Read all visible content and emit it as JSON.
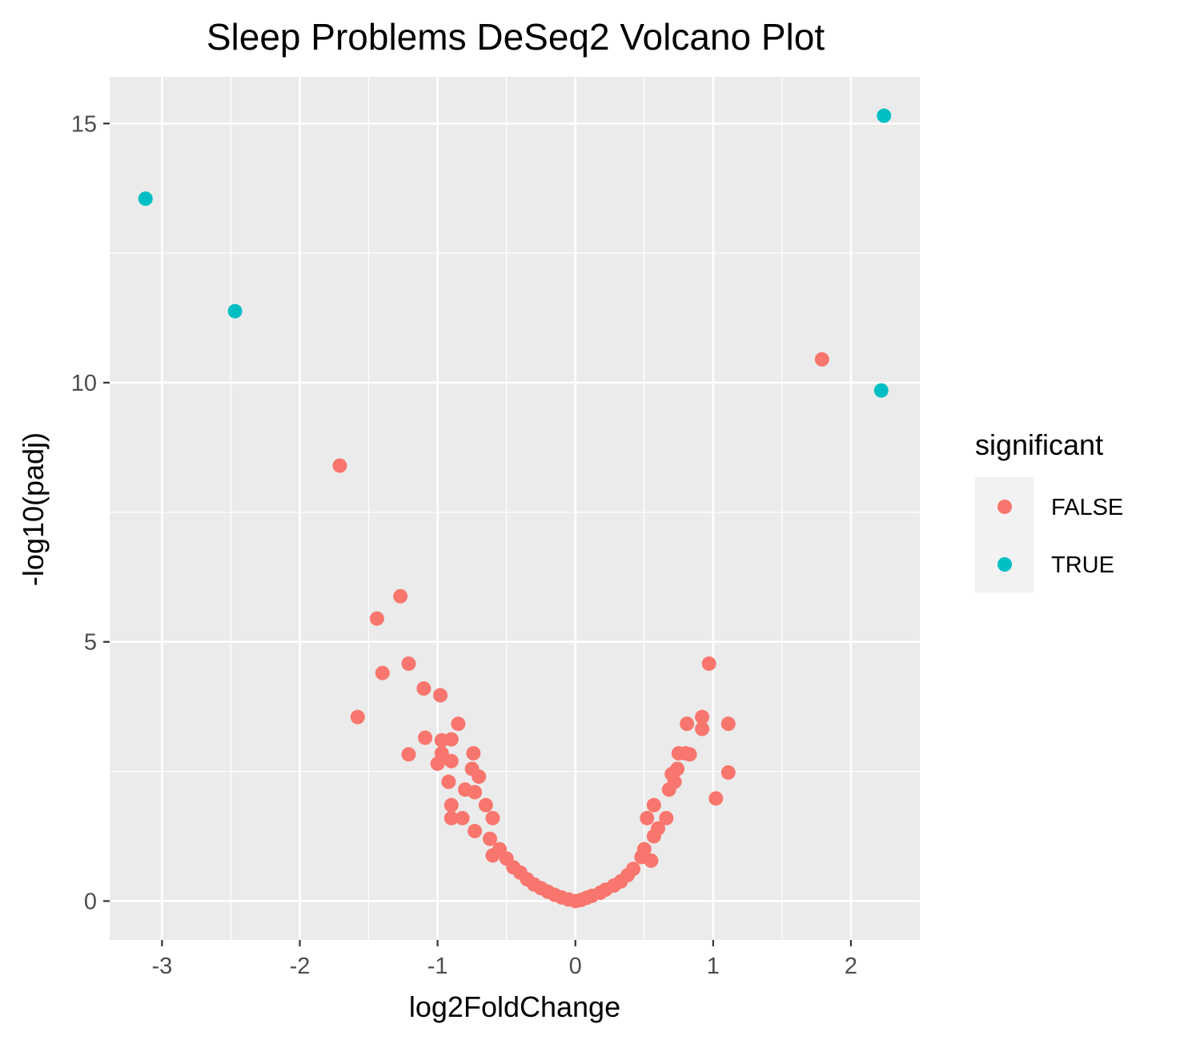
{
  "chart_data": {
    "type": "scatter",
    "title": "Sleep Problems DeSeq2 Volcano Plot",
    "xlabel": "log2FoldChange",
    "ylabel": "-log10(padj)",
    "xlim": [
      -3.38,
      2.5
    ],
    "ylim": [
      -0.75,
      15.9
    ],
    "x_ticks": [
      -3,
      -2,
      -1,
      0,
      1,
      2
    ],
    "x_tick_labels": [
      "-3",
      "-2",
      "-1",
      "0",
      "1",
      "2"
    ],
    "y_ticks": [
      0,
      5,
      10,
      15
    ],
    "y_tick_labels": [
      "0",
      "5",
      "10",
      "15"
    ],
    "grid": true,
    "legend": {
      "title": "significant",
      "placement": "right",
      "entries": [
        {
          "label": "FALSE",
          "color": "#F8766D"
        },
        {
          "label": "TRUE",
          "color": "#00BFC4"
        }
      ]
    },
    "panel_background": "#EBEBEB",
    "series": [
      {
        "name": "FALSE",
        "color": "#F8766D",
        "points": [
          [
            1.79,
            10.45
          ],
          [
            -1.71,
            8.4
          ],
          [
            -1.27,
            5.88
          ],
          [
            -1.44,
            5.45
          ],
          [
            -1.21,
            4.58
          ],
          [
            -1.4,
            4.4
          ],
          [
            0.97,
            4.58
          ],
          [
            -1.1,
            4.1
          ],
          [
            -0.98,
            3.97
          ],
          [
            -1.58,
            3.55
          ],
          [
            0.92,
            3.55
          ],
          [
            -0.85,
            3.42
          ],
          [
            0.81,
            3.42
          ],
          [
            1.11,
            3.42
          ],
          [
            0.92,
            3.32
          ],
          [
            -1.09,
            3.15
          ],
          [
            -0.97,
            3.1
          ],
          [
            -0.9,
            3.12
          ],
          [
            -0.97,
            2.85
          ],
          [
            -1.21,
            2.83
          ],
          [
            -0.74,
            2.85
          ],
          [
            0.75,
            2.85
          ],
          [
            0.8,
            2.85
          ],
          [
            0.83,
            2.83
          ],
          [
            -1.0,
            2.65
          ],
          [
            -0.9,
            2.7
          ],
          [
            -0.75,
            2.55
          ],
          [
            -0.7,
            2.4
          ],
          [
            1.11,
            2.48
          ],
          [
            0.74,
            2.55
          ],
          [
            0.7,
            2.45
          ],
          [
            -0.92,
            2.3
          ],
          [
            -0.8,
            2.15
          ],
          [
            0.72,
            2.3
          ],
          [
            -0.73,
            2.1
          ],
          [
            0.68,
            2.15
          ],
          [
            1.02,
            1.98
          ],
          [
            -0.9,
            1.85
          ],
          [
            -0.65,
            1.85
          ],
          [
            0.57,
            1.85
          ],
          [
            -0.9,
            1.6
          ],
          [
            -0.82,
            1.6
          ],
          [
            -0.6,
            1.6
          ],
          [
            0.66,
            1.6
          ],
          [
            0.52,
            1.6
          ],
          [
            -0.73,
            1.35
          ],
          [
            0.6,
            1.4
          ],
          [
            -0.62,
            1.2
          ],
          [
            0.57,
            1.25
          ],
          [
            -0.55,
            1.0
          ],
          [
            0.5,
            1.0
          ],
          [
            -0.6,
            0.88
          ],
          [
            0.55,
            0.78
          ],
          [
            -0.5,
            0.82
          ],
          [
            0.48,
            0.85
          ],
          [
            -0.45,
            0.65
          ],
          [
            0.42,
            0.62
          ],
          [
            -0.4,
            0.55
          ],
          [
            0.38,
            0.5
          ],
          [
            -0.35,
            0.42
          ],
          [
            0.33,
            0.38
          ],
          [
            -0.3,
            0.32
          ],
          [
            0.28,
            0.3
          ],
          [
            -0.25,
            0.25
          ],
          [
            0.22,
            0.22
          ],
          [
            -0.2,
            0.18
          ],
          [
            0.18,
            0.16
          ],
          [
            -0.15,
            0.12
          ],
          [
            0.12,
            0.1
          ],
          [
            -0.1,
            0.07
          ],
          [
            0.08,
            0.06
          ],
          [
            -0.05,
            0.03
          ],
          [
            0.04,
            0.02
          ],
          [
            0.0,
            0.0
          ]
        ]
      },
      {
        "name": "TRUE",
        "color": "#00BFC4",
        "points": [
          [
            2.24,
            15.15
          ],
          [
            -3.12,
            13.55
          ],
          [
            -2.47,
            11.38
          ],
          [
            2.22,
            9.85
          ]
        ]
      }
    ]
  }
}
